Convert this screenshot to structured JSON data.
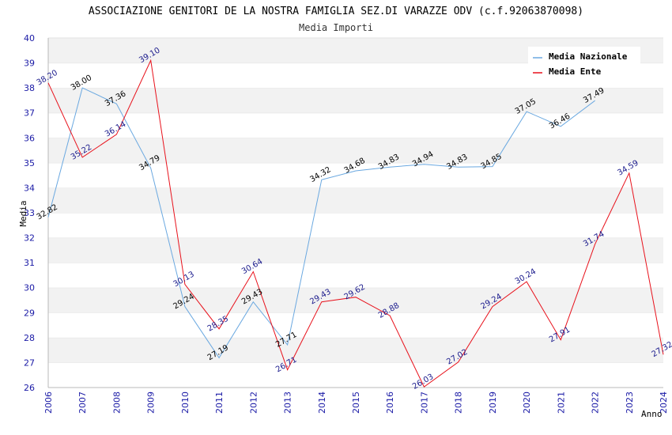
{
  "chart_data": {
    "type": "line",
    "title": "ASSOCIAZIONE GENITORI DE LA NOSTRA FAMIGLIA SEZ.DI VARAZZE ODV (c.f.92063870098)",
    "subtitle": "Media Importi",
    "xlabel": "Anno",
    "ylabel": "Media",
    "ylim": [
      26,
      40
    ],
    "y_ticks": [
      "26",
      "27",
      "28",
      "29",
      "30",
      "31",
      "32",
      "33",
      "34",
      "35",
      "36",
      "37",
      "38",
      "39",
      "40"
    ],
    "x": [
      "2006",
      "2007",
      "2008",
      "2009",
      "2010",
      "2011",
      "2012",
      "2013",
      "2014",
      "2015",
      "2016",
      "2017",
      "2018",
      "2019",
      "2020",
      "2021",
      "2022",
      "2023",
      "2024"
    ],
    "legend_position": "top-right",
    "series": [
      {
        "name": "Media Nazionale",
        "color": "#6aa8e0",
        "label_color": "#000000",
        "values": [
          32.82,
          38.0,
          37.36,
          34.79,
          29.24,
          27.19,
          29.43,
          27.71,
          34.32,
          34.68,
          34.83,
          34.94,
          34.83,
          34.85,
          37.05,
          36.46,
          37.49,
          null,
          null
        ],
        "labels": [
          "32.82",
          "38.00",
          "37.36",
          "34.79",
          "29.24",
          "27.19",
          "29.43",
          "27.71",
          "34.32",
          "34.68",
          "34.83",
          "34.94",
          "34.83",
          "34.85",
          "37.05",
          "36.46",
          "37.49",
          null,
          null
        ]
      },
      {
        "name": "Media Ente",
        "color": "#e8111b",
        "label_color": "#1a1a8c",
        "values": [
          38.2,
          35.22,
          36.14,
          39.1,
          30.13,
          28.35,
          30.64,
          26.71,
          29.43,
          29.62,
          28.88,
          26.03,
          27.02,
          29.24,
          30.24,
          27.91,
          31.74,
          34.59,
          27.32
        ],
        "labels": [
          "38.20",
          "35.22",
          "36.14",
          "39.10",
          "30.13",
          "28.35",
          "30.64",
          "26.71",
          "29.43",
          "29.62",
          "28.88",
          "26.03",
          "27.02",
          "29.24",
          "30.24",
          "27.91",
          "31.74",
          "34.59",
          "27.32"
        ]
      }
    ]
  }
}
